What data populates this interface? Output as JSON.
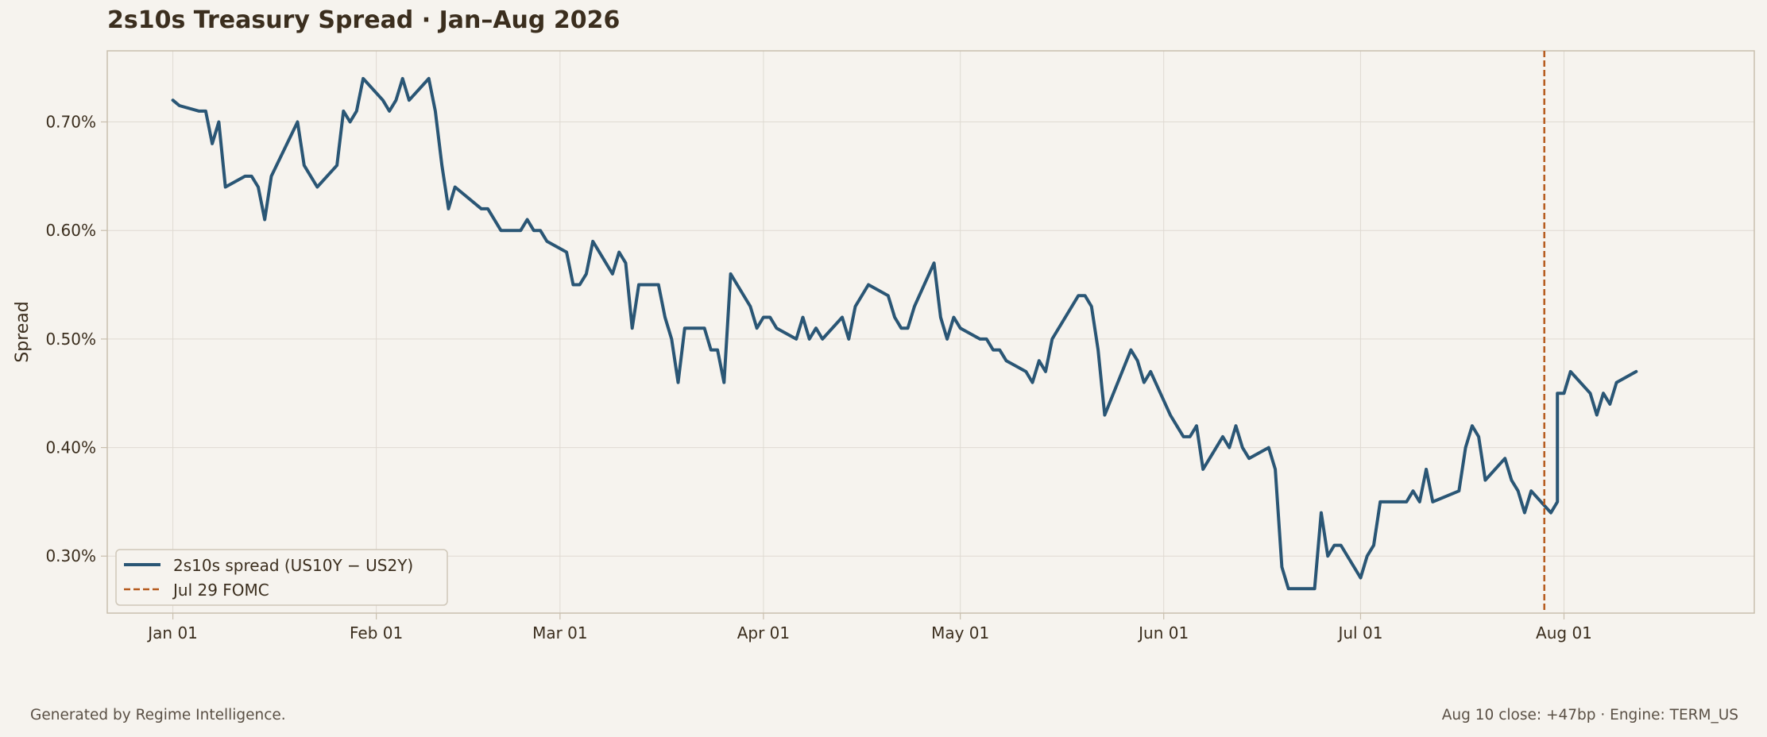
{
  "title": "2s10s Treasury Spread · Jan–Aug 2026",
  "footer": {
    "left": "Generated by Regime Intelligence.",
    "right": "Aug 10 close: +47bp · Engine: TERM_US"
  },
  "colors": {
    "background": "#f6f3ee",
    "series": "#2a5675",
    "event_line": "#b55a1d",
    "grid": "#dfdad2",
    "axis": "#c9bfae",
    "text": "#3b2e1e"
  },
  "chart_data": {
    "type": "line",
    "title": "2s10s Treasury Spread · Jan–Aug 2026",
    "xlabel": "",
    "ylabel": "Spread",
    "xlim": [
      "2025-12-22",
      "2026-08-30"
    ],
    "ylim": [
      0.2475,
      0.7655
    ],
    "x_ticks": [
      "2026-01-01",
      "2026-02-01",
      "2026-03-01",
      "2026-04-01",
      "2026-05-01",
      "2026-06-01",
      "2026-07-01",
      "2026-08-01"
    ],
    "x_tick_labels": [
      "Jan 01",
      "Feb 01",
      "Mar 01",
      "Apr 01",
      "May 01",
      "Jun 01",
      "Jul 01",
      "Aug 01"
    ],
    "y_ticks": [
      0.3,
      0.4,
      0.5,
      0.6,
      0.7
    ],
    "y_tick_labels": [
      "0.30%",
      "0.40%",
      "0.50%",
      "0.60%",
      "0.70%"
    ],
    "grid": true,
    "legend_position": "bottom-left",
    "series": [
      {
        "name": "2s10s spread (US10Y − US2Y)",
        "style": "solid",
        "points": [
          [
            "2026-01-01",
            0.72
          ],
          [
            "2026-01-02",
            0.715
          ],
          [
            "2026-01-05",
            0.71
          ],
          [
            "2026-01-06",
            0.71
          ],
          [
            "2026-01-07",
            0.68
          ],
          [
            "2026-01-08",
            0.7
          ],
          [
            "2026-01-09",
            0.64
          ],
          [
            "2026-01-12",
            0.65
          ],
          [
            "2026-01-13",
            0.65
          ],
          [
            "2026-01-14",
            0.64
          ],
          [
            "2026-01-15",
            0.61
          ],
          [
            "2026-01-16",
            0.65
          ],
          [
            "2026-01-20",
            0.7
          ],
          [
            "2026-01-21",
            0.66
          ],
          [
            "2026-01-23",
            0.64
          ],
          [
            "2026-01-26",
            0.66
          ],
          [
            "2026-01-27",
            0.71
          ],
          [
            "2026-01-28",
            0.7
          ],
          [
            "2026-01-29",
            0.71
          ],
          [
            "2026-01-30",
            0.74
          ],
          [
            "2026-02-02",
            0.72
          ],
          [
            "2026-02-03",
            0.71
          ],
          [
            "2026-02-04",
            0.72
          ],
          [
            "2026-02-05",
            0.74
          ],
          [
            "2026-02-06",
            0.72
          ],
          [
            "2026-02-09",
            0.74
          ],
          [
            "2026-02-10",
            0.71
          ],
          [
            "2026-02-11",
            0.66
          ],
          [
            "2026-02-12",
            0.62
          ],
          [
            "2026-02-13",
            0.64
          ],
          [
            "2026-02-17",
            0.62
          ],
          [
            "2026-02-18",
            0.62
          ],
          [
            "2026-02-20",
            0.6
          ],
          [
            "2026-02-23",
            0.6
          ],
          [
            "2026-02-24",
            0.61
          ],
          [
            "2026-02-25",
            0.6
          ],
          [
            "2026-02-26",
            0.6
          ],
          [
            "2026-02-27",
            0.59
          ],
          [
            "2026-03-02",
            0.58
          ],
          [
            "2026-03-03",
            0.55
          ],
          [
            "2026-03-04",
            0.55
          ],
          [
            "2026-03-05",
            0.56
          ],
          [
            "2026-03-06",
            0.59
          ],
          [
            "2026-03-09",
            0.56
          ],
          [
            "2026-03-10",
            0.58
          ],
          [
            "2026-03-11",
            0.57
          ],
          [
            "2026-03-12",
            0.51
          ],
          [
            "2026-03-13",
            0.55
          ],
          [
            "2026-03-16",
            0.55
          ],
          [
            "2026-03-17",
            0.52
          ],
          [
            "2026-03-18",
            0.5
          ],
          [
            "2026-03-19",
            0.46
          ],
          [
            "2026-03-20",
            0.51
          ],
          [
            "2026-03-23",
            0.51
          ],
          [
            "2026-03-24",
            0.49
          ],
          [
            "2026-03-25",
            0.49
          ],
          [
            "2026-03-26",
            0.46
          ],
          [
            "2026-03-27",
            0.56
          ],
          [
            "2026-03-30",
            0.53
          ],
          [
            "2026-03-31",
            0.51
          ],
          [
            "2026-04-01",
            0.52
          ],
          [
            "2026-04-02",
            0.52
          ],
          [
            "2026-04-03",
            0.51
          ],
          [
            "2026-04-06",
            0.5
          ],
          [
            "2026-04-07",
            0.52
          ],
          [
            "2026-04-08",
            0.5
          ],
          [
            "2026-04-09",
            0.51
          ],
          [
            "2026-04-10",
            0.5
          ],
          [
            "2026-04-13",
            0.52
          ],
          [
            "2026-04-14",
            0.5
          ],
          [
            "2026-04-15",
            0.53
          ],
          [
            "2026-04-17",
            0.55
          ],
          [
            "2026-04-20",
            0.54
          ],
          [
            "2026-04-21",
            0.52
          ],
          [
            "2026-04-22",
            0.51
          ],
          [
            "2026-04-23",
            0.51
          ],
          [
            "2026-04-24",
            0.53
          ],
          [
            "2026-04-27",
            0.57
          ],
          [
            "2026-04-28",
            0.52
          ],
          [
            "2026-04-29",
            0.5
          ],
          [
            "2026-04-30",
            0.52
          ],
          [
            "2026-05-01",
            0.51
          ],
          [
            "2026-05-04",
            0.5
          ],
          [
            "2026-05-05",
            0.5
          ],
          [
            "2026-05-06",
            0.49
          ],
          [
            "2026-05-07",
            0.49
          ],
          [
            "2026-05-08",
            0.48
          ],
          [
            "2026-05-11",
            0.47
          ],
          [
            "2026-05-12",
            0.46
          ],
          [
            "2026-05-13",
            0.48
          ],
          [
            "2026-05-14",
            0.47
          ],
          [
            "2026-05-15",
            0.5
          ],
          [
            "2026-05-19",
            0.54
          ],
          [
            "2026-05-20",
            0.54
          ],
          [
            "2026-05-21",
            0.53
          ],
          [
            "2026-05-22",
            0.49
          ],
          [
            "2026-05-23",
            0.43
          ],
          [
            "2026-05-27",
            0.49
          ],
          [
            "2026-05-28",
            0.48
          ],
          [
            "2026-05-29",
            0.46
          ],
          [
            "2026-05-30",
            0.47
          ],
          [
            "2026-06-02",
            0.43
          ],
          [
            "2026-06-03",
            0.42
          ],
          [
            "2026-06-04",
            0.41
          ],
          [
            "2026-06-05",
            0.41
          ],
          [
            "2026-06-06",
            0.42
          ],
          [
            "2026-06-07",
            0.38
          ],
          [
            "2026-06-10",
            0.41
          ],
          [
            "2026-06-11",
            0.4
          ],
          [
            "2026-06-12",
            0.42
          ],
          [
            "2026-06-13",
            0.4
          ],
          [
            "2026-06-14",
            0.39
          ],
          [
            "2026-06-17",
            0.4
          ],
          [
            "2026-06-18",
            0.38
          ],
          [
            "2026-06-19",
            0.29
          ],
          [
            "2026-06-20",
            0.27
          ],
          [
            "2026-06-24",
            0.27
          ],
          [
            "2026-06-25",
            0.34
          ],
          [
            "2026-06-26",
            0.3
          ],
          [
            "2026-06-27",
            0.31
          ],
          [
            "2026-06-28",
            0.31
          ],
          [
            "2026-07-01",
            0.28
          ],
          [
            "2026-07-02",
            0.3
          ],
          [
            "2026-07-03",
            0.31
          ],
          [
            "2026-07-04",
            0.35
          ],
          [
            "2026-07-08",
            0.35
          ],
          [
            "2026-07-09",
            0.36
          ],
          [
            "2026-07-10",
            0.35
          ],
          [
            "2026-07-11",
            0.38
          ],
          [
            "2026-07-12",
            0.35
          ],
          [
            "2026-07-16",
            0.36
          ],
          [
            "2026-07-17",
            0.4
          ],
          [
            "2026-07-18",
            0.42
          ],
          [
            "2026-07-19",
            0.41
          ],
          [
            "2026-07-20",
            0.37
          ],
          [
            "2026-07-23",
            0.39
          ],
          [
            "2026-07-24",
            0.37
          ],
          [
            "2026-07-25",
            0.36
          ],
          [
            "2026-07-26",
            0.34
          ],
          [
            "2026-07-27",
            0.36
          ],
          [
            "2026-07-30",
            0.34
          ],
          [
            "2026-07-31",
            0.35
          ],
          [
            "2026-07-31",
            0.45
          ],
          [
            "2026-08-01",
            0.45
          ],
          [
            "2026-08-02",
            0.47
          ],
          [
            "2026-08-05",
            0.45
          ],
          [
            "2026-08-06",
            0.43
          ],
          [
            "2026-08-07",
            0.45
          ],
          [
            "2026-08-08",
            0.44
          ],
          [
            "2026-08-09",
            0.46
          ],
          [
            "2026-08-12",
            0.47
          ]
        ]
      },
      {
        "name": "Jul 29 FOMC",
        "style": "dashed",
        "type": "vline",
        "x": "2026-07-29"
      }
    ]
  }
}
